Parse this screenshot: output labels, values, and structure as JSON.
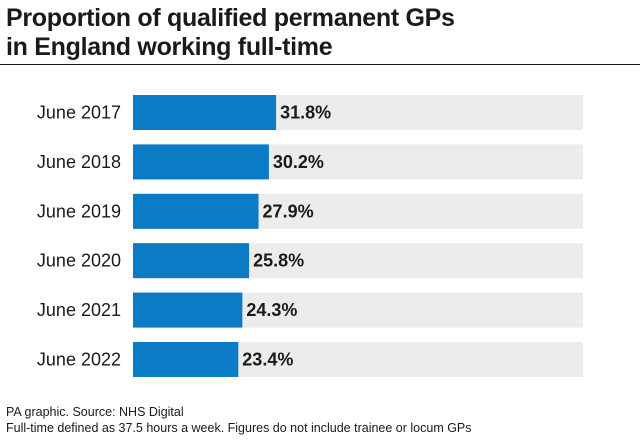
{
  "chart_data": {
    "type": "bar",
    "orientation": "horizontal",
    "title_lines": [
      "Proportion of qualified permanent GPs",
      "in England working full-time"
    ],
    "categories": [
      "June 2017",
      "June 2018",
      "June 2019",
      "June 2020",
      "June 2021",
      "June 2022"
    ],
    "values": [
      31.8,
      30.2,
      27.9,
      25.8,
      24.3,
      23.4
    ],
    "value_labels": [
      "31.8%",
      "30.2%",
      "27.9%",
      "25.8%",
      "24.3%",
      "23.4%"
    ],
    "xlim": [
      0,
      100
    ],
    "unit": "%",
    "bar_color": "#0a7bc4",
    "track_color": "#ececec",
    "xlabel": "",
    "ylabel": "",
    "grid": false
  },
  "footer": {
    "source": "PA graphic. Source: NHS Digital",
    "note": "Full-time defined as 37.5 hours a week. Figures do not include trainee or locum GPs"
  }
}
